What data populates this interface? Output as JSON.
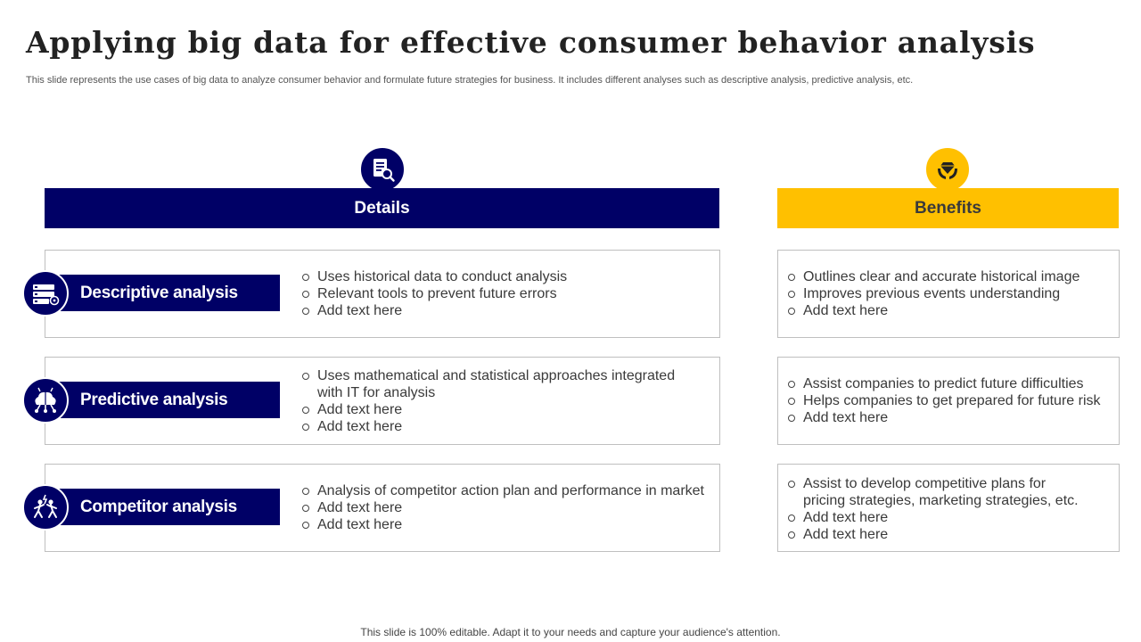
{
  "title": "Applying big data for effective consumer behavior analysis",
  "subtitle": "This slide represents the use cases of big data to analyze consumer behavior and formulate future strategies for business. It includes different analyses such as descriptive analysis, predictive analysis, etc.",
  "details_header": "Details",
  "benefits_header": "Benefits",
  "details_icon": "document-search-icon",
  "benefits_icon": "hands-gem-icon",
  "colors": {
    "navy": "#000066",
    "gold": "#FFC000"
  },
  "rows": [
    {
      "label": "Descriptive analysis",
      "icon": "server-gear-icon",
      "details": [
        "Uses historical data to conduct analysis",
        "Relevant tools to prevent future errors",
        "Add text here"
      ],
      "benefits": [
        "Outlines clear and accurate historical image",
        "Improves previous events understanding",
        "Add text here"
      ]
    },
    {
      "label": "Predictive analysis",
      "icon": "brain-network-icon",
      "details": [
        "Uses mathematical and statistical approaches integrated with IT for analysis",
        "Add text here",
        "Add text here"
      ],
      "benefits": [
        "Assist companies to predict future difficulties",
        "Helps companies to get prepared for future  risk",
        "Add text here"
      ]
    },
    {
      "label": "Competitor analysis",
      "icon": "competitors-running-icon",
      "details": [
        "Analysis of competitor action plan and performance in market",
        "Add text here",
        "Add text here"
      ],
      "benefits": [
        "Assist to develop competitive plans for pricing strategies, marketing strategies, etc.",
        "Add text here",
        "Add text here"
      ]
    }
  ],
  "footer": "This slide is 100% editable. Adapt it to your needs and capture your audience's attention."
}
